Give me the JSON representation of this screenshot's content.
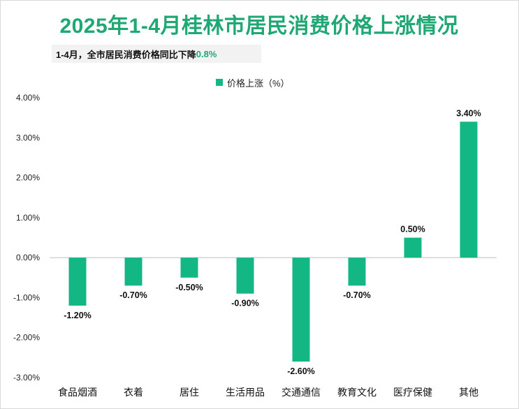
{
  "title": "2025年1-4月桂林市居民消费价格上涨情况",
  "subtitle": {
    "text": "1-4月，全市居民消费价格同比下降",
    "highlight": "0.8%"
  },
  "colors": {
    "bar": "#13b783",
    "title": "#1fa774",
    "axis": "#bfbfbf"
  },
  "chart_data": {
    "type": "bar",
    "categories": [
      "食品烟酒",
      "衣着",
      "居住",
      "生活用品",
      "交通通信",
      "教育文化",
      "医疗保健",
      "其他"
    ],
    "series": [
      {
        "name": "价格上涨（%）",
        "values": [
          -1.2,
          -0.7,
          -0.5,
          -0.9,
          -2.6,
          -0.7,
          0.5,
          3.4
        ],
        "labels": [
          "-1.20%",
          "-0.70%",
          "-0.50%",
          "-0.90%",
          "-2.60%",
          "-0.70%",
          "0.50%",
          "3.40%"
        ]
      }
    ],
    "ylim": [
      -3,
      4
    ],
    "yticks": [
      4,
      3,
      2,
      1,
      0,
      -1,
      -2,
      -3
    ],
    "ytick_labels": [
      "4.00%",
      "3.00%",
      "2.00%",
      "1.00%",
      "0.00%",
      "-1.00%",
      "-2.00%",
      "-3.00%"
    ],
    "legend_position": "top-center",
    "grid": false
  }
}
